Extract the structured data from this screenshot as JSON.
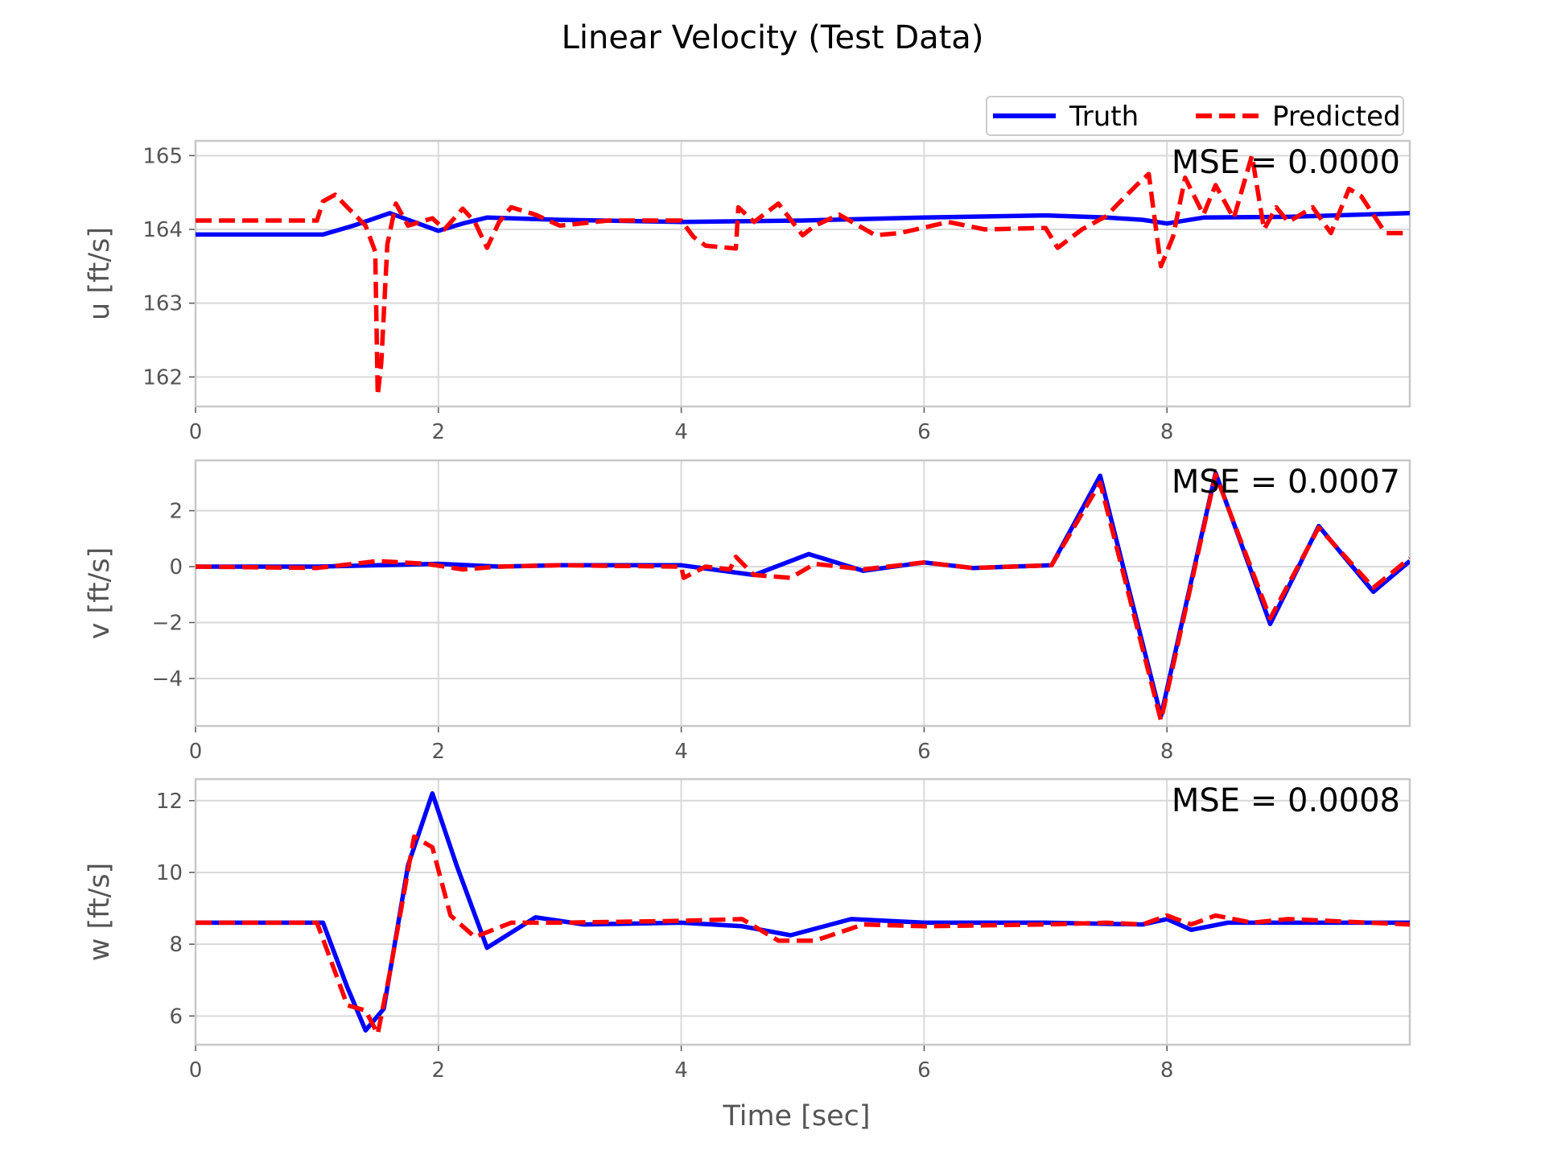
{
  "chart_data": {
    "type": "line",
    "title": "Linear Velocity (Test Data)",
    "xlabel": "Time [sec]",
    "legend": {
      "placement": "top-right",
      "entries": [
        {
          "name": "Truth",
          "color": "#0000ff",
          "style": "solid"
        },
        {
          "name": "Predicted",
          "color": "#ff0000",
          "style": "dashed"
        }
      ]
    },
    "grid": true,
    "xlim": [
      0,
      10
    ],
    "xticks": [
      0,
      2,
      4,
      6,
      8
    ],
    "subplots": [
      {
        "ylabel": "u [ft/s]",
        "ylim": [
          161.6,
          165.2
        ],
        "yticks": [
          162,
          163,
          164,
          165
        ],
        "annotation": "MSE = 0.0000",
        "series": [
          {
            "name": "Truth",
            "color": "#0000ff",
            "style": "solid",
            "x": [
              0,
              1.05,
              1.3,
              1.6,
              1.8,
              2.0,
              2.2,
              2.4,
              3.0,
              4.0,
              5.0,
              6.0,
              7.0,
              7.5,
              7.8,
              8.0,
              8.3,
              9.0,
              10.0
            ],
            "y": [
              163.93,
              163.93,
              164.05,
              164.22,
              164.1,
              163.98,
              164.08,
              164.16,
              164.13,
              164.1,
              164.12,
              164.16,
              164.19,
              164.16,
              164.13,
              164.08,
              164.16,
              164.17,
              164.22
            ]
          },
          {
            "name": "Predicted",
            "color": "#ff0000",
            "style": "dashed",
            "x": [
              0,
              1.0,
              1.05,
              1.15,
              1.25,
              1.4,
              1.48,
              1.5,
              1.53,
              1.58,
              1.65,
              1.75,
              1.85,
              1.95,
              2.05,
              2.2,
              2.3,
              2.4,
              2.5,
              2.6,
              2.8,
              3.0,
              3.4,
              4.0,
              4.1,
              4.2,
              4.45,
              4.47,
              4.6,
              4.8,
              5.0,
              5.1,
              5.3,
              5.6,
              5.8,
              6.2,
              6.5,
              7.0,
              7.1,
              7.3,
              7.5,
              7.6,
              7.75,
              7.85,
              7.95,
              8.05,
              8.15,
              8.3,
              8.4,
              8.55,
              8.7,
              8.8,
              8.9,
              9.0,
              9.2,
              9.35,
              9.5,
              9.6,
              9.8,
              10.0
            ],
            "y": [
              164.12,
              164.12,
              164.38,
              164.47,
              164.3,
              164.05,
              163.7,
              161.75,
              162.2,
              163.8,
              164.35,
              164.05,
              164.1,
              164.15,
              164.0,
              164.28,
              164.1,
              163.75,
              164.1,
              164.3,
              164.2,
              164.05,
              164.12,
              164.12,
              163.9,
              163.78,
              163.74,
              164.3,
              164.1,
              164.35,
              163.92,
              164.05,
              164.2,
              163.92,
              163.95,
              164.1,
              164.0,
              164.02,
              163.75,
              164.0,
              164.18,
              164.35,
              164.6,
              164.75,
              163.5,
              163.9,
              164.7,
              164.2,
              164.6,
              164.15,
              165.0,
              164.0,
              164.3,
              164.1,
              164.3,
              163.95,
              164.55,
              164.45,
              163.95,
              163.95
            ]
          }
        ]
      },
      {
        "ylabel": "v [ft/s]",
        "ylim": [
          -5.7,
          3.8
        ],
        "yticks": [
          -4,
          -2,
          0,
          2
        ],
        "annotation": "MSE = 0.0007",
        "series": [
          {
            "name": "Truth",
            "color": "#0000ff",
            "style": "solid",
            "x": [
              0,
              1.0,
              2.0,
              2.5,
              3.0,
              4.0,
              4.6,
              5.05,
              5.5,
              6.0,
              6.4,
              7.05,
              7.45,
              7.95,
              8.4,
              8.85,
              9.25,
              9.7,
              10.0
            ],
            "y": [
              0.0,
              0.0,
              0.1,
              0.0,
              0.05,
              0.05,
              -0.3,
              0.45,
              -0.15,
              0.15,
              -0.05,
              0.05,
              3.25,
              -5.35,
              3.35,
              -2.05,
              1.45,
              -0.9,
              0.2
            ]
          },
          {
            "name": "Predicted",
            "color": "#ff0000",
            "style": "dashed",
            "x": [
              0,
              1.0,
              1.5,
              1.9,
              2.2,
              2.5,
              3.0,
              4.0,
              4.02,
              4.2,
              4.4,
              4.45,
              4.6,
              4.9,
              5.1,
              5.5,
              6.0,
              6.4,
              7.05,
              7.45,
              7.95,
              8.4,
              8.85,
              9.25,
              9.7,
              10.0
            ],
            "y": [
              0.0,
              -0.05,
              0.2,
              0.1,
              -0.1,
              0.0,
              0.05,
              0.0,
              -0.4,
              0.0,
              -0.1,
              0.35,
              -0.3,
              -0.4,
              0.1,
              -0.1,
              0.15,
              -0.05,
              0.05,
              3.0,
              -5.5,
              3.3,
              -1.85,
              1.4,
              -0.75,
              0.3
            ]
          }
        ]
      },
      {
        "ylabel": "w [ft/s]",
        "ylim": [
          5.2,
          12.6
        ],
        "yticks": [
          6,
          8,
          10,
          12
        ],
        "annotation": "MSE = 0.0008",
        "series": [
          {
            "name": "Truth",
            "color": "#0000ff",
            "style": "solid",
            "x": [
              0,
              1.05,
              1.25,
              1.4,
              1.55,
              1.75,
              1.95,
              2.15,
              2.4,
              2.8,
              3.2,
              4.0,
              4.5,
              4.9,
              5.4,
              6.0,
              7.0,
              7.8,
              8.0,
              8.2,
              8.5,
              9.0,
              10.0
            ],
            "y": [
              8.6,
              8.6,
              6.8,
              5.6,
              6.2,
              10.2,
              12.2,
              10.2,
              7.9,
              8.75,
              8.55,
              8.6,
              8.5,
              8.25,
              8.7,
              8.6,
              8.6,
              8.55,
              8.7,
              8.4,
              8.6,
              8.6,
              8.6
            ]
          },
          {
            "name": "Predicted",
            "color": "#ff0000",
            "style": "dashed",
            "x": [
              0,
              1.0,
              1.25,
              1.4,
              1.5,
              1.6,
              1.8,
              1.95,
              2.1,
              2.3,
              2.6,
              3.0,
              4.0,
              4.5,
              4.8,
              5.1,
              5.5,
              6.0,
              7.0,
              7.5,
              7.8,
              8.0,
              8.2,
              8.4,
              8.7,
              9.0,
              10.0
            ],
            "y": [
              8.6,
              8.6,
              6.3,
              6.15,
              5.5,
              7.2,
              11.0,
              10.7,
              8.8,
              8.2,
              8.6,
              8.6,
              8.65,
              8.7,
              8.1,
              8.1,
              8.55,
              8.5,
              8.55,
              8.6,
              8.55,
              8.8,
              8.55,
              8.8,
              8.6,
              8.7,
              8.55
            ]
          }
        ]
      }
    ]
  }
}
